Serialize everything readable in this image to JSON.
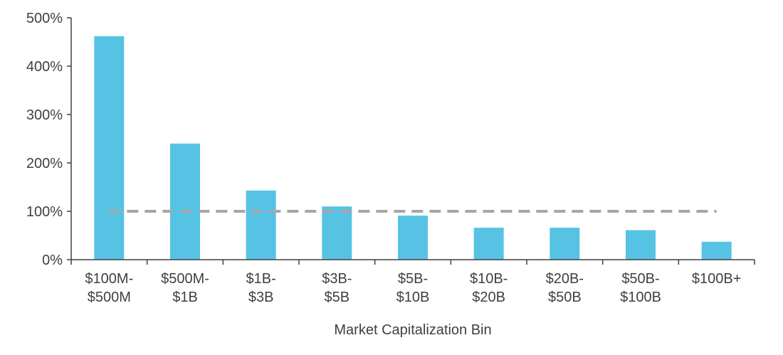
{
  "chart_data": {
    "type": "bar",
    "title": "",
    "xlabel": "Market Capitalization Bin",
    "ylabel": "",
    "categories": [
      [
        "$100M-",
        "$500M"
      ],
      [
        "$500M-",
        "$1B"
      ],
      [
        "$1B-",
        "$3B"
      ],
      [
        "$3B-",
        "$5B"
      ],
      [
        "$5B-",
        "$10B"
      ],
      [
        "$10B-",
        "$20B"
      ],
      [
        "$20B-",
        "$50B"
      ],
      [
        "$50B-",
        "$100B"
      ],
      [
        "$100B+"
      ]
    ],
    "values": [
      462,
      240,
      143,
      110,
      91,
      66,
      66,
      61,
      37
    ],
    "value_unit": "%",
    "ylim": [
      0,
      500
    ],
    "yticks": [
      0,
      100,
      200,
      300,
      400,
      500
    ],
    "ytick_labels": [
      "0%",
      "100%",
      "200%",
      "300%",
      "400%",
      "500%"
    ],
    "reference_line": {
      "value": 100,
      "style": "dashed"
    },
    "grid": false,
    "legend": "none",
    "colors": {
      "bar": "#56C3E5",
      "reference_line": "#A6A6A6",
      "axis": "#404040",
      "text": "#404040"
    }
  }
}
